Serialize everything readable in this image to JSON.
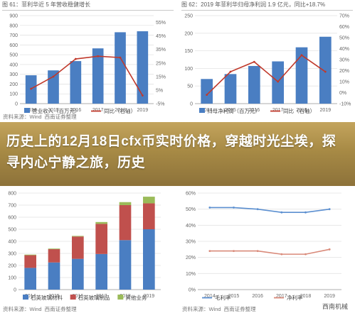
{
  "overlay": {
    "headline": "历史上的12月18日cfx币实时价格，穿越时光尘埃，探寻内心宁静之旅，历史"
  },
  "watermark": "西南机械",
  "colors": {
    "bar_blue": "#4a7ec2",
    "line_red": "#c0392b",
    "bar_red": "#c0504d",
    "bar_green": "#9bbb59",
    "line_blue": "#5b8fd0",
    "line_salmon": "#d98a7a",
    "overlay_gold": "#a78a45"
  },
  "panels": [
    {
      "title": "图 61：菲利华近 5 年营收稳健增长",
      "source": [
        "资料来源：Wind",
        "西南证券整理"
      ]
    },
    {
      "title": "图 62：2019 年菲利华归母净利润 1.9 亿元，同比+18.7%",
      "source": []
    },
    {
      "title": "",
      "source": [
        "资料来源：Wind",
        "西南证券整理"
      ]
    },
    {
      "title": "",
      "source": [
        "资料来源：Wind",
        "西南证券整理"
      ]
    }
  ],
  "chart_data": [
    {
      "type": "bar",
      "categories": [
        "2014",
        "2015",
        "2016",
        "2017",
        "2018",
        "2019"
      ],
      "ylim": [
        0,
        900
      ],
      "yticks": [
        0,
        100,
        200,
        300,
        400,
        500,
        600,
        700,
        800,
        900
      ],
      "y2lim": [
        -0.05,
        0.6
      ],
      "y2ticks": [
        -0.05,
        0.05,
        0.15,
        0.25,
        0.35,
        0.45,
        0.55
      ],
      "series": [
        {
          "name": "营业收入（百万元）",
          "kind": "bar",
          "color": "#4a7ec2",
          "values": [
            290,
            340,
            435,
            565,
            730,
            740
          ]
        },
        {
          "name": "同比（右轴）",
          "kind": "line",
          "axis": "right",
          "color": "#c0392b",
          "values": [
            0.06,
            0.15,
            0.28,
            0.3,
            0.29,
            0.01
          ]
        }
      ],
      "legend_placement": "bottom"
    },
    {
      "type": "bar",
      "categories": [
        "2014",
        "2015",
        "2016",
        "2017",
        "2018",
        "2019"
      ],
      "ylim": [
        0,
        250
      ],
      "yticks": [
        0,
        50,
        100,
        150,
        200,
        250
      ],
      "y2lim": [
        -0.1,
        0.7
      ],
      "y2ticks": [
        -0.1,
        0.0,
        0.1,
        0.2,
        0.3,
        0.4,
        0.5,
        0.6,
        0.7
      ],
      "series": [
        {
          "name": "归母净利润（百万元）",
          "kind": "bar",
          "color": "#4a7ec2",
          "values": [
            70,
            84,
            107,
            120,
            160,
            190
          ]
        },
        {
          "name": "同比（右轴）",
          "kind": "line",
          "axis": "right",
          "color": "#c0392b",
          "values": [
            -0.02,
            0.19,
            0.28,
            0.1,
            0.34,
            0.19
          ]
        }
      ],
      "legend_placement": "bottom"
    },
    {
      "type": "bar",
      "stacked": true,
      "categories": [
        "2014",
        "2015",
        "2016",
        "2017",
        "2018",
        "2019"
      ],
      "ylim": [
        0,
        800
      ],
      "yticks": [
        0,
        100,
        200,
        300,
        400,
        500,
        600,
        700,
        800
      ],
      "series": [
        {
          "name": "石英玻璃材料",
          "color": "#4a7ec2",
          "values": [
            180,
            225,
            255,
            295,
            410,
            500
          ]
        },
        {
          "name": "石英玻璃制品",
          "color": "#c0504d",
          "values": [
            105,
            110,
            185,
            250,
            290,
            215
          ]
        },
        {
          "name": "其他业务",
          "color": "#9bbb59",
          "values": [
            5,
            5,
            5,
            15,
            25,
            55
          ]
        }
      ],
      "legend_placement": "bottom"
    },
    {
      "type": "line",
      "categories": [
        "2014",
        "2015",
        "2016",
        "2017",
        "2018",
        "2019"
      ],
      "ylim": [
        0,
        0.6
      ],
      "yticks": [
        "0%",
        "10%",
        "20%",
        "30%",
        "40%",
        "50%",
        "60%"
      ],
      "series": [
        {
          "name": "毛利率",
          "color": "#5b8fd0",
          "values": [
            0.51,
            0.51,
            0.5,
            0.48,
            0.48,
            0.5
          ]
        },
        {
          "name": "净利率",
          "color": "#d98a7a",
          "values": [
            0.24,
            0.24,
            0.24,
            0.22,
            0.22,
            0.25
          ]
        }
      ],
      "legend_placement": "bottom"
    }
  ]
}
